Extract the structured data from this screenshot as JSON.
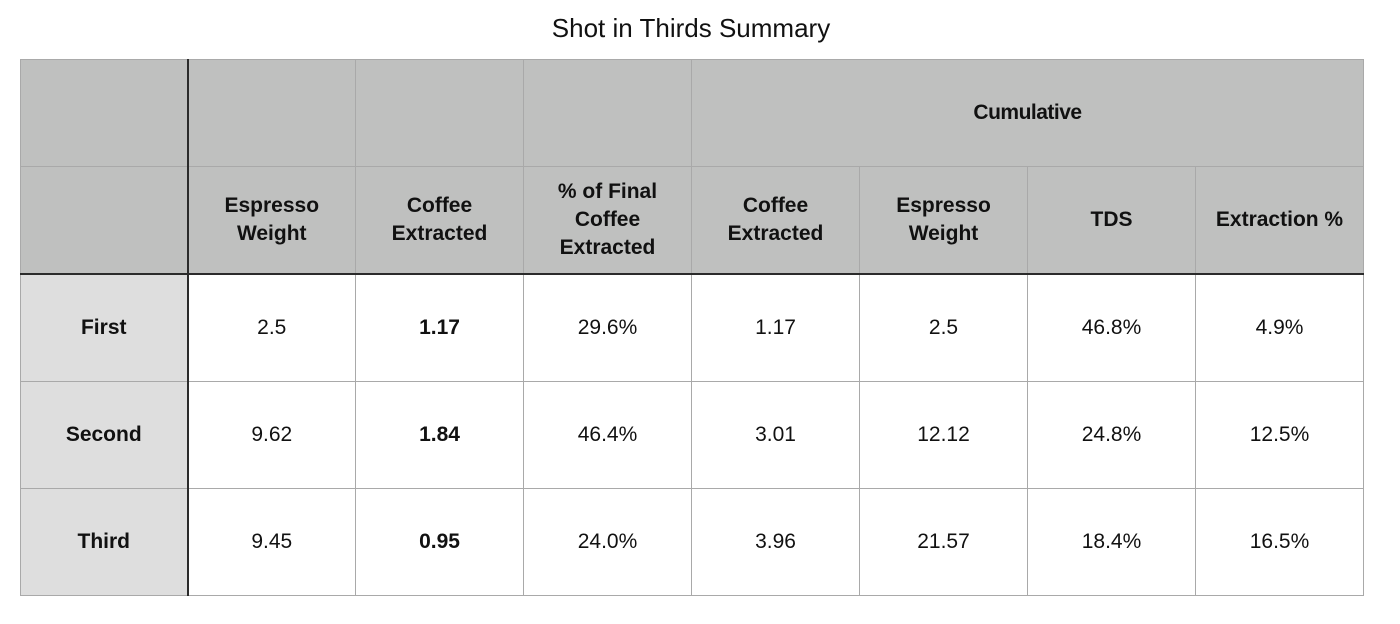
{
  "title": "Shot in Thirds Summary",
  "chart_data": {
    "type": "table",
    "title": "Shot in Thirds Summary",
    "group_header": "Cumulative",
    "columns": [
      "Espresso Weight",
      "Coffee Extracted",
      "% of Final Coffee Extracted",
      "Coffee Extracted",
      "Espresso Weight",
      "TDS",
      "Extraction %"
    ],
    "cumulative_columns": [
      3,
      4,
      5,
      6
    ],
    "rows": [
      {
        "label": "First",
        "values": [
          "2.5",
          "1.17",
          "29.6%",
          "1.17",
          "2.5",
          "46.8%",
          "4.9%"
        ]
      },
      {
        "label": "Second",
        "values": [
          "9.62",
          "1.84",
          "46.4%",
          "3.01",
          "12.12",
          "24.8%",
          "12.5%"
        ]
      },
      {
        "label": "Third",
        "values": [
          "9.45",
          "0.95",
          "24.0%",
          "3.96",
          "21.57",
          "18.4%",
          "16.5%"
        ]
      }
    ],
    "bold_columns": [
      1
    ]
  },
  "table": {
    "header_lines": [
      [
        "Espresso",
        "Weight"
      ],
      [
        "Coffee",
        "Extracted"
      ],
      [
        "% of Final",
        "Coffee",
        "Extracted"
      ],
      [
        "Coffee",
        "Extracted"
      ],
      [
        "Espresso",
        "Weight"
      ],
      [
        "TDS"
      ],
      [
        "Extraction %"
      ]
    ]
  },
  "colors": {
    "header_bg": "#bfc0bf",
    "row_label_bg": "#dedede",
    "grid": "#a9a9a9",
    "rule": "#2b2b2b"
  }
}
